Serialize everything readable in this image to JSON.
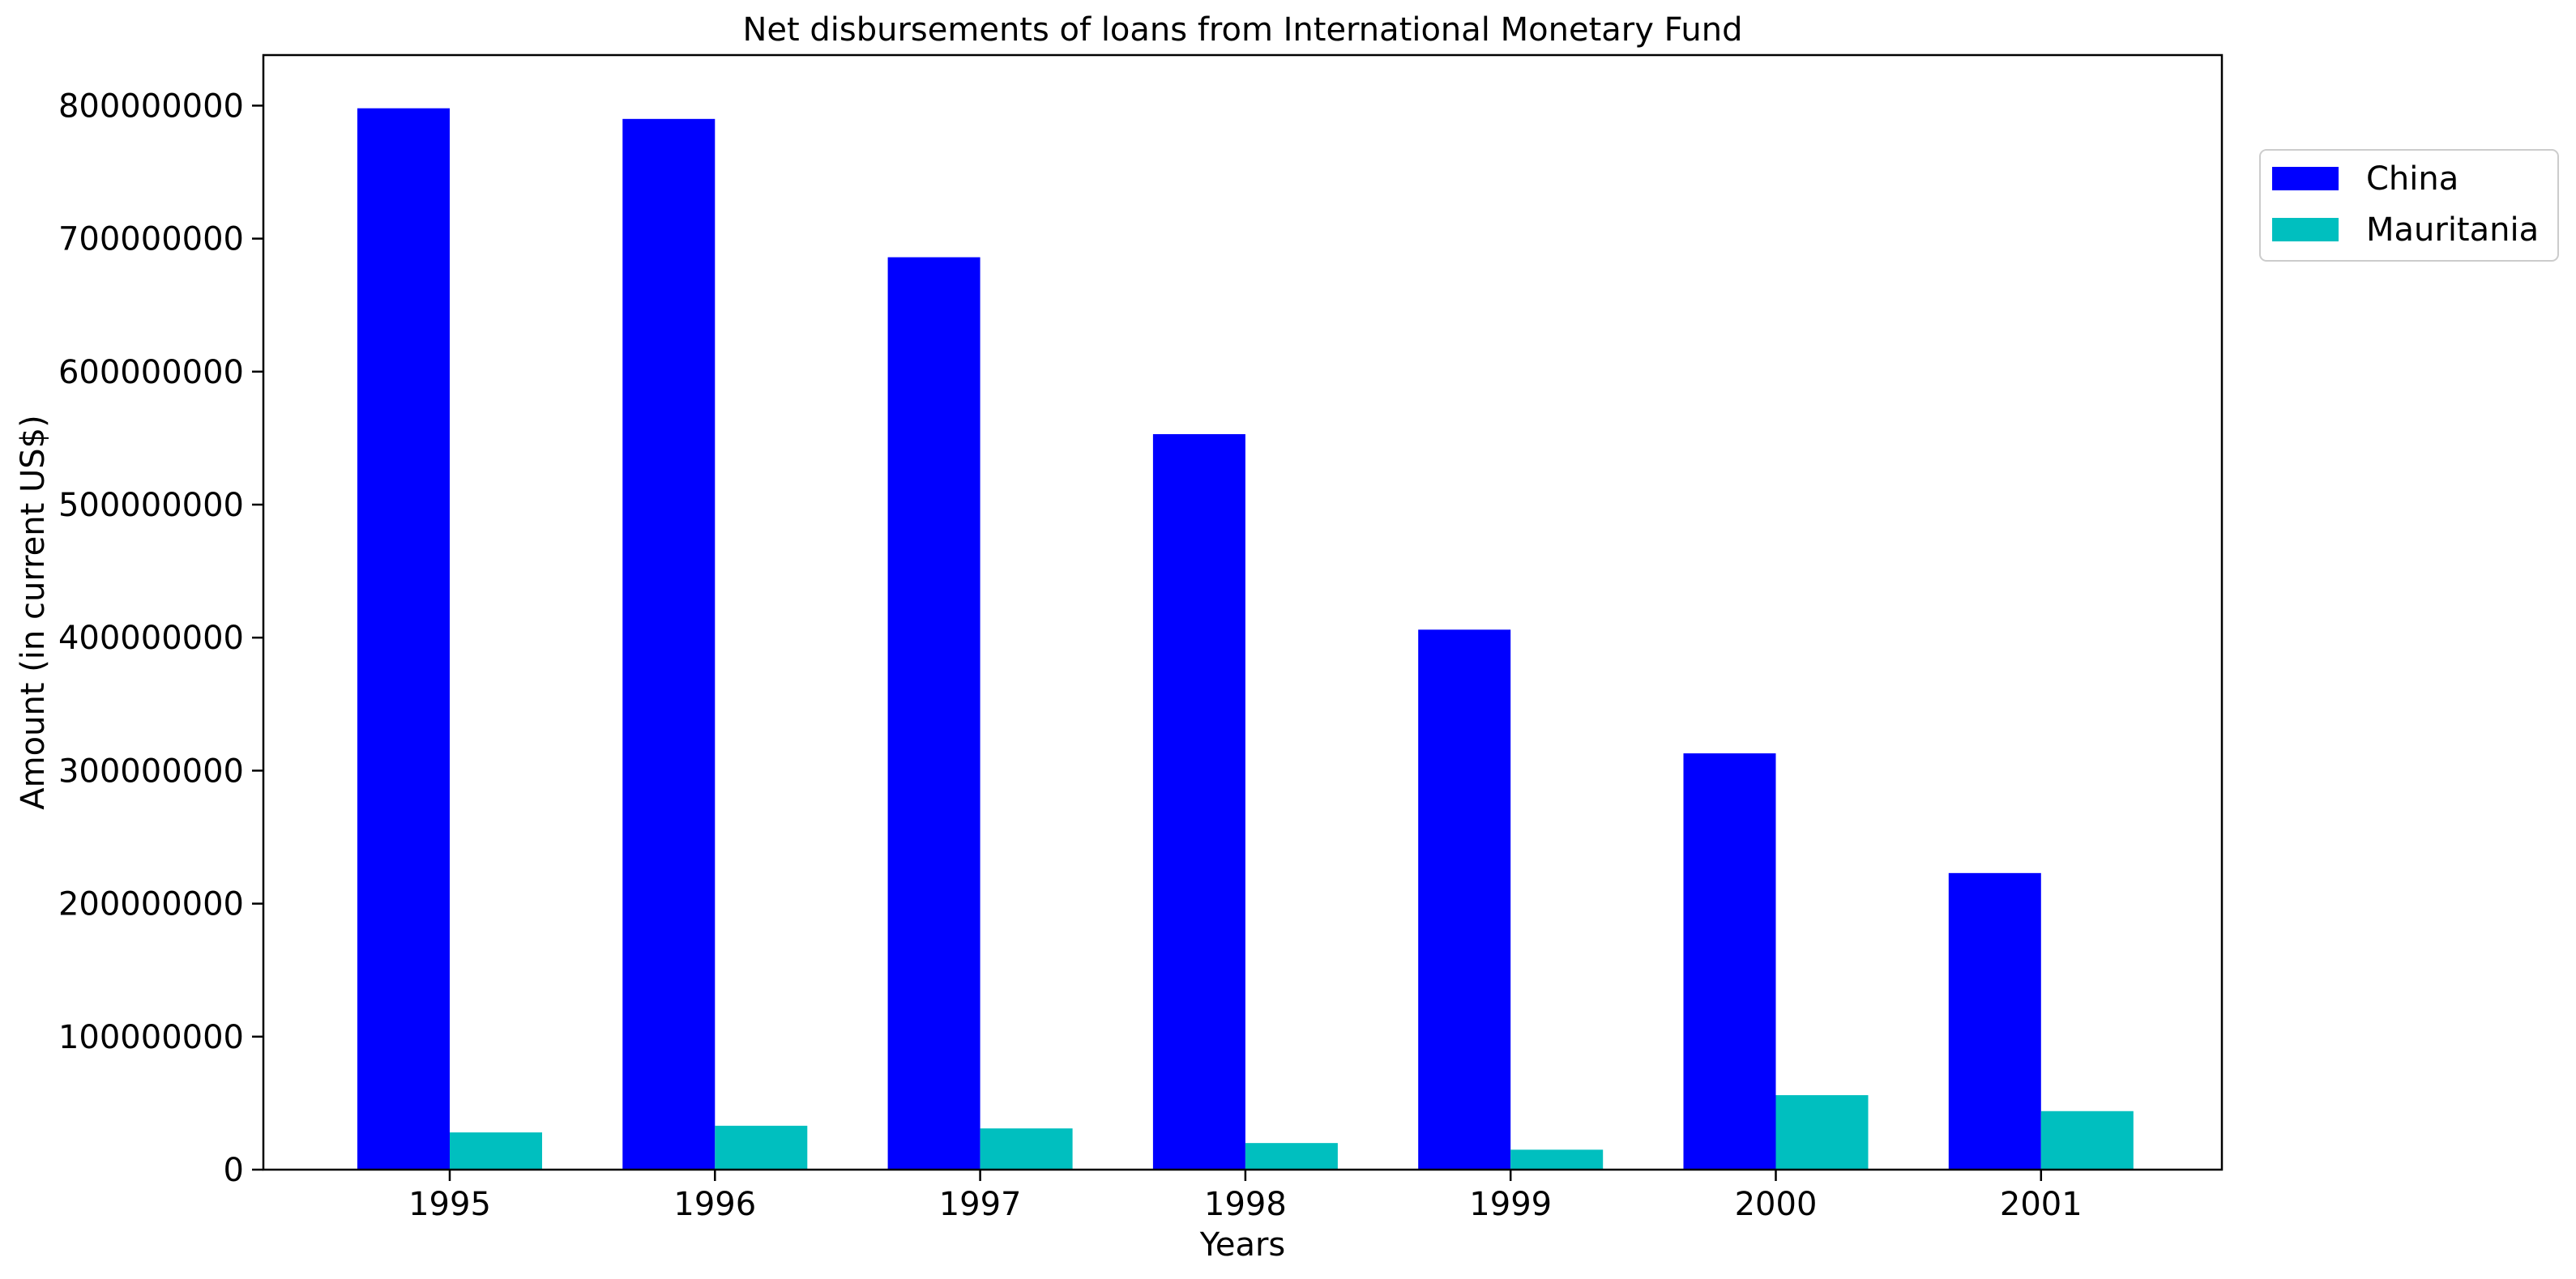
{
  "chart_data": {
    "type": "bar",
    "title": "Net disbursements of loans from International Monetary Fund",
    "xlabel": "Years",
    "ylabel": "Amount (in current US$)",
    "categories": [
      "1995",
      "1996",
      "1997",
      "1998",
      "1999",
      "2000",
      "2001"
    ],
    "series": [
      {
        "name": "China",
        "color": "#0000ff",
        "values": [
          798000000,
          790000000,
          686000000,
          553000000,
          406000000,
          313000000,
          223000000
        ]
      },
      {
        "name": "Mauritania",
        "color": "#00bfbf",
        "values": [
          28000000,
          33000000,
          31000000,
          20000000,
          15000000,
          56000000,
          44000000
        ]
      }
    ],
    "ylim": [
      0,
      838000000
    ],
    "yticks": [
      0,
      100000000,
      200000000,
      300000000,
      400000000,
      500000000,
      600000000,
      700000000,
      800000000
    ],
    "ytick_labels": [
      "0",
      "100000000",
      "200000000",
      "300000000",
      "400000000",
      "500000000",
      "600000000",
      "700000000",
      "800000000"
    ],
    "grid": false,
    "legend_position": "top-right, outside plot"
  }
}
